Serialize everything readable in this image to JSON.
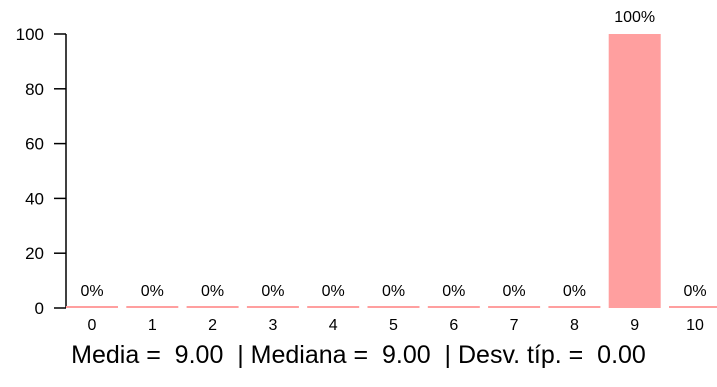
{
  "chart_data": {
    "type": "bar",
    "categories": [
      "0",
      "1",
      "2",
      "3",
      "4",
      "5",
      "6",
      "7",
      "8",
      "9",
      "10"
    ],
    "values": [
      0,
      0,
      0,
      0,
      0,
      0,
      0,
      0,
      0,
      100,
      0
    ],
    "data_labels": [
      "0%",
      "0%",
      "0%",
      "0%",
      "0%",
      "0%",
      "0%",
      "0%",
      "0%",
      "100%",
      "0%"
    ],
    "y_ticks": [
      "0",
      "20",
      "40",
      "60",
      "80",
      "100"
    ],
    "ylim": [
      0,
      100
    ],
    "bar_color": "#ff9f9f",
    "grid": false,
    "legend": "none"
  },
  "stats": {
    "text": "Media =  9.00  | Mediana =  9.00  | Desv. típ. =  0.00"
  }
}
